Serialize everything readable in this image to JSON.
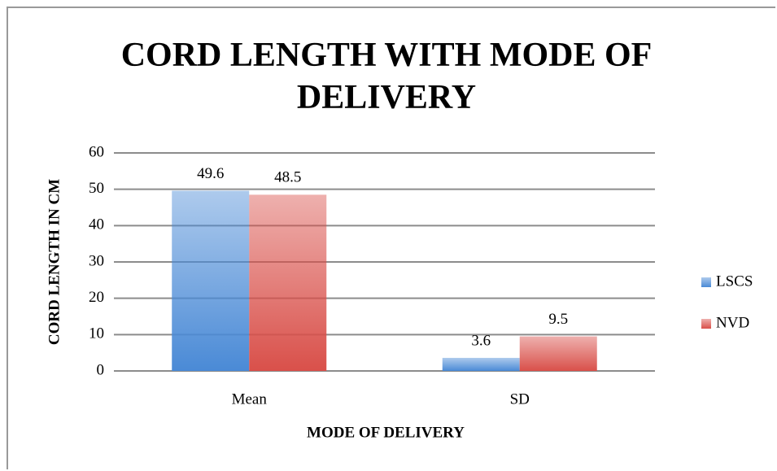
{
  "chart_data": {
    "type": "bar",
    "title": "CORD LENGTH WITH MODE OF DELIVERY",
    "x_label": "MODE OF DELIVERY",
    "y_label": "CORD LENGTH IN CM",
    "categories": [
      "Mean",
      "SD"
    ],
    "series": [
      {
        "name": "LSCS",
        "color": "#4a8ad6",
        "values": [
          49.6,
          3.6
        ]
      },
      {
        "name": "NVD",
        "color": "#d9504a",
        "values": [
          48.5,
          9.5
        ]
      }
    ],
    "ylim": [
      0,
      60
    ],
    "yticks": [
      0,
      10,
      20,
      30,
      40,
      50,
      60
    ],
    "grid": true,
    "legend": "right"
  }
}
